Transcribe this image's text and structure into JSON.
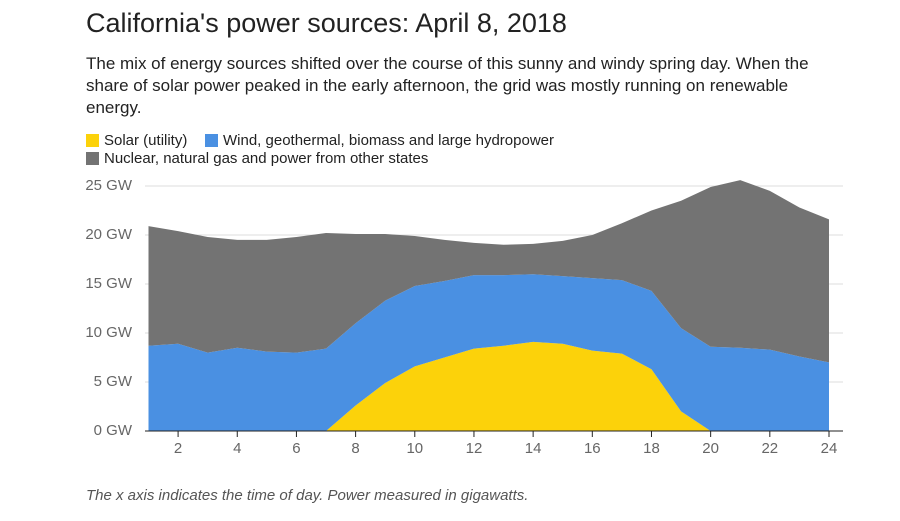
{
  "chart_data": {
    "type": "stacked-area",
    "title": "California's power sources: April 8, 2018",
    "subtitle": "The mix of energy sources shifted over the course of this sunny and windy spring day. When the share of solar power peaked in the early afternoon, the grid was mostly running on renewable energy.",
    "note": "The x axis indicates the time of day. Power measured in gigawatts.",
    "x": [
      1,
      2,
      3,
      4,
      5,
      6,
      7,
      8,
      9,
      10,
      11,
      12,
      13,
      14,
      15,
      16,
      17,
      18,
      19,
      20,
      21,
      22,
      23,
      24
    ],
    "series": [
      {
        "name": "Solar (utility)",
        "color": "#fcd20a",
        "values": [
          0,
          0,
          0,
          0,
          0,
          0,
          0,
          2.6,
          4.9,
          6.6,
          7.5,
          8.4,
          8.7,
          9.1,
          8.9,
          8.2,
          7.9,
          6.3,
          2.0,
          0,
          0,
          0,
          0,
          0
        ]
      },
      {
        "name": "Wind, geothermal, biomass and large hydropower",
        "color": "#4a90e2",
        "values": [
          8.7,
          8.9,
          8.0,
          8.5,
          8.1,
          8.0,
          8.4,
          8.4,
          8.4,
          8.2,
          7.8,
          7.5,
          7.2,
          6.9,
          6.9,
          7.4,
          7.5,
          8.0,
          8.5,
          8.6,
          8.5,
          8.3,
          7.6,
          7.0
        ]
      },
      {
        "name": "Nuclear, natural gas and power from other states",
        "color": "#737373",
        "values": [
          12.2,
          11.5,
          11.8,
          11.0,
          11.4,
          11.8,
          11.8,
          9.1,
          6.8,
          5.1,
          4.2,
          3.3,
          3.1,
          3.1,
          3.6,
          4.4,
          5.8,
          8.2,
          13.0,
          16.3,
          17.1,
          16.2,
          15.2,
          14.6
        ]
      }
    ],
    "xlim": [
      1,
      24
    ],
    "xticks": [
      2,
      4,
      6,
      8,
      10,
      12,
      14,
      16,
      18,
      20,
      22,
      24
    ],
    "ylim": [
      0,
      25
    ],
    "yticks": [
      {
        "value": 0,
        "label": "0 GW"
      },
      {
        "value": 5,
        "label": "5 GW"
      },
      {
        "value": 10,
        "label": "10 GW"
      },
      {
        "value": 15,
        "label": "15 GW"
      },
      {
        "value": 20,
        "label": "20 GW"
      },
      {
        "value": 25,
        "label": "25 GW"
      }
    ],
    "grid": true
  }
}
